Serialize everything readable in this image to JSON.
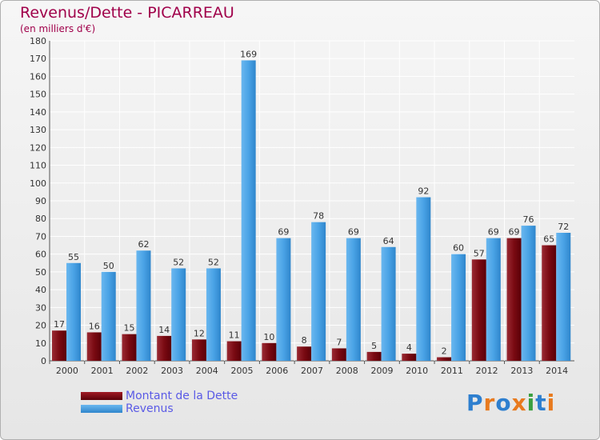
{
  "header": {
    "title": "Revenus/Dette - PICARREAU",
    "subtitle": "(en milliers d'€)"
  },
  "legend": {
    "items": [
      {
        "label": "Montant de la Dette",
        "color": "#7a0a12"
      },
      {
        "label": "Revenus",
        "color": "#3f9be0"
      }
    ]
  },
  "logo": {
    "text": "Proxiti",
    "colors": [
      "#2e7fcf",
      "#e87a1e",
      "#2e7fcf",
      "#e87a1e",
      "#3aa040",
      "#2e7fcf",
      "#e87a1e"
    ]
  },
  "chart_data": {
    "type": "bar",
    "title": "Revenus/Dette - PICARREAU",
    "subtitle": "(en milliers d'€)",
    "categories": [
      "2000",
      "2001",
      "2002",
      "2003",
      "2004",
      "2005",
      "2006",
      "2007",
      "2008",
      "2009",
      "2010",
      "2011",
      "2012",
      "2013",
      "2014"
    ],
    "series": [
      {
        "name": "Montant de la Dette",
        "color": "#7a0a12",
        "values": [
          17,
          16,
          15,
          14,
          12,
          11,
          10,
          8,
          7,
          5,
          4,
          2,
          57,
          69,
          65
        ]
      },
      {
        "name": "Revenus",
        "color": "#3f9be0",
        "values": [
          55,
          50,
          62,
          52,
          52,
          169,
          69,
          78,
          69,
          64,
          92,
          60,
          69,
          76,
          72
        ]
      }
    ],
    "ylim": [
      0,
      180
    ],
    "yticks": [
      0,
      10,
      20,
      30,
      40,
      50,
      60,
      70,
      80,
      90,
      100,
      110,
      120,
      130,
      140,
      150,
      160,
      170,
      180
    ],
    "grid": true,
    "legend_position": "bottom-left"
  }
}
